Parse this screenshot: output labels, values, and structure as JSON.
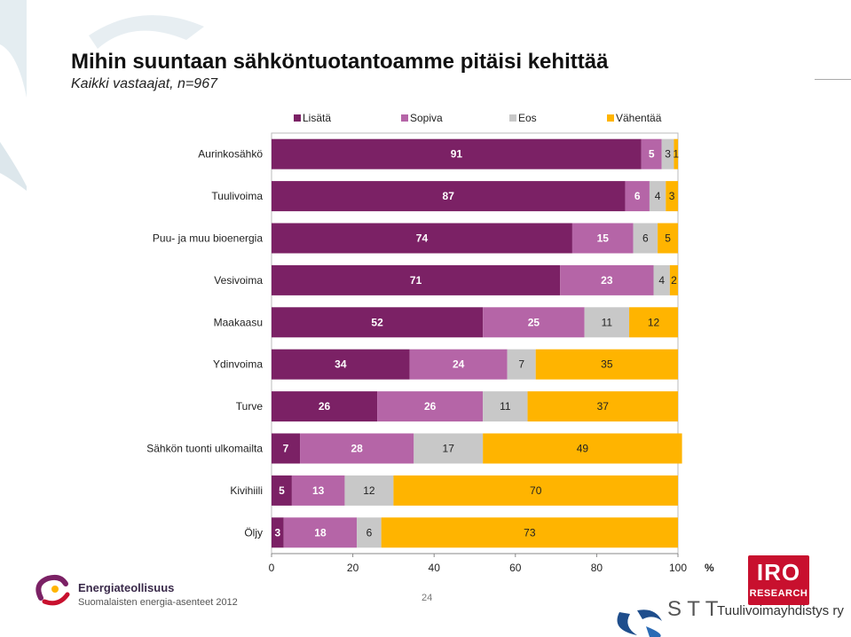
{
  "slide": {
    "title": "Mihin suuntaan sähköntuotantoamme pitäisi kehittää",
    "subtitle": "Kaikki vastaajat, n=967",
    "page_number": "24",
    "footer_logo_name": "Energiateollisuus",
    "footer_logo_sub": "Suomalaisten energia-asenteet 2012",
    "iro_logo_top": "IRO",
    "iro_logo_bottom": "RESEARCH",
    "stt_logo_text": "Tuulivoimayhdistys ry",
    "stt_logo_letters": "S T T"
  },
  "chart_data": {
    "type": "bar",
    "orientation": "horizontal",
    "stacked": true,
    "categories": [
      "Aurinkosähkö",
      "Tuulivoima",
      "Puu- ja muu bioenergia",
      "Vesivoima",
      "Maakaasu",
      "Ydinvoima",
      "Turve",
      "Sähkön tuonti ulkomailta",
      "Kivihiili",
      "Öljy"
    ],
    "series": [
      {
        "name": "Lisätä",
        "color": "#7b2165",
        "values": [
          91,
          87,
          74,
          71,
          52,
          34,
          26,
          7,
          5,
          3
        ]
      },
      {
        "name": "Sopiva",
        "color": "#b565a7",
        "values": [
          5,
          6,
          15,
          23,
          25,
          24,
          26,
          28,
          13,
          18
        ]
      },
      {
        "name": "Eos",
        "color": "#c8c8c8",
        "values": [
          3,
          4,
          6,
          4,
          11,
          7,
          11,
          17,
          12,
          6
        ]
      },
      {
        "name": "Vähentää",
        "color": "#ffb400",
        "values": [
          1,
          3,
          5,
          2,
          12,
          35,
          37,
          49,
          70,
          73
        ]
      }
    ],
    "xlim": [
      0,
      100
    ],
    "xticks": [
      0,
      20,
      40,
      60,
      80,
      100
    ],
    "xunit": "%",
    "legend_position": "top",
    "grid": false
  }
}
